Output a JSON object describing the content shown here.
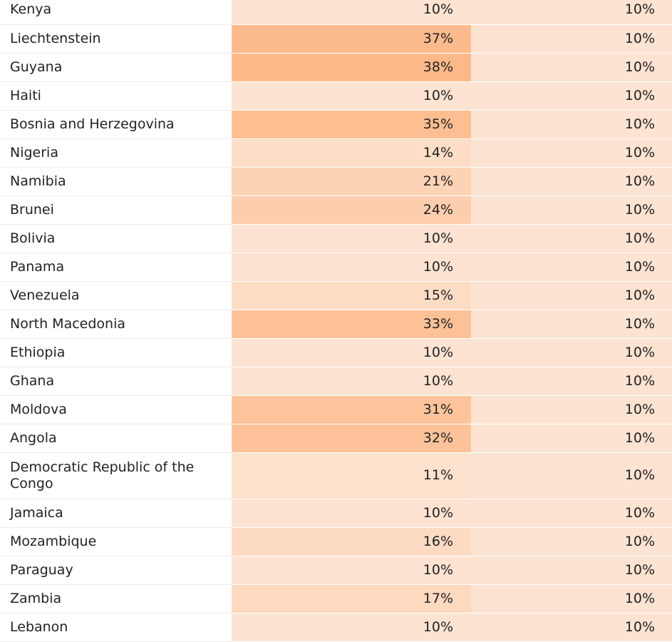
{
  "colors": {
    "heat_low": "#fde3d1",
    "heat_high": "#fdb98a"
  },
  "rows": [
    {
      "country": "Kenya",
      "a": "10%",
      "b": "10%",
      "a_level": 10
    },
    {
      "country": "Liechtenstein",
      "a": "37%",
      "b": "10%",
      "a_level": 37
    },
    {
      "country": "Guyana",
      "a": "38%",
      "b": "10%",
      "a_level": 38
    },
    {
      "country": "Haiti",
      "a": "10%",
      "b": "10%",
      "a_level": 10
    },
    {
      "country": "Bosnia and Herzegovina",
      "a": "35%",
      "b": "10%",
      "a_level": 35
    },
    {
      "country": "Nigeria",
      "a": "14%",
      "b": "10%",
      "a_level": 14
    },
    {
      "country": "Namibia",
      "a": "21%",
      "b": "10%",
      "a_level": 21
    },
    {
      "country": "Brunei",
      "a": "24%",
      "b": "10%",
      "a_level": 24
    },
    {
      "country": "Bolivia",
      "a": "10%",
      "b": "10%",
      "a_level": 10
    },
    {
      "country": "Panama",
      "a": "10%",
      "b": "10%",
      "a_level": 10
    },
    {
      "country": "Venezuela",
      "a": "15%",
      "b": "10%",
      "a_level": 15
    },
    {
      "country": "North Macedonia",
      "a": "33%",
      "b": "10%",
      "a_level": 33
    },
    {
      "country": "Ethiopia",
      "a": "10%",
      "b": "10%",
      "a_level": 10
    },
    {
      "country": "Ghana",
      "a": "10%",
      "b": "10%",
      "a_level": 10
    },
    {
      "country": "Moldova",
      "a": "31%",
      "b": "10%",
      "a_level": 31
    },
    {
      "country": "Angola",
      "a": "32%",
      "b": "10%",
      "a_level": 32
    },
    {
      "country": "Democratic Republic of the Congo",
      "a": "11%",
      "b": "10%",
      "a_level": 11
    },
    {
      "country": "Jamaica",
      "a": "10%",
      "b": "10%",
      "a_level": 10
    },
    {
      "country": "Mozambique",
      "a": "16%",
      "b": "10%",
      "a_level": 16
    },
    {
      "country": "Paraguay",
      "a": "10%",
      "b": "10%",
      "a_level": 10
    },
    {
      "country": "Zambia",
      "a": "17%",
      "b": "10%",
      "a_level": 17
    },
    {
      "country": "Lebanon",
      "a": "10%",
      "b": "10%",
      "a_level": 10
    }
  ]
}
